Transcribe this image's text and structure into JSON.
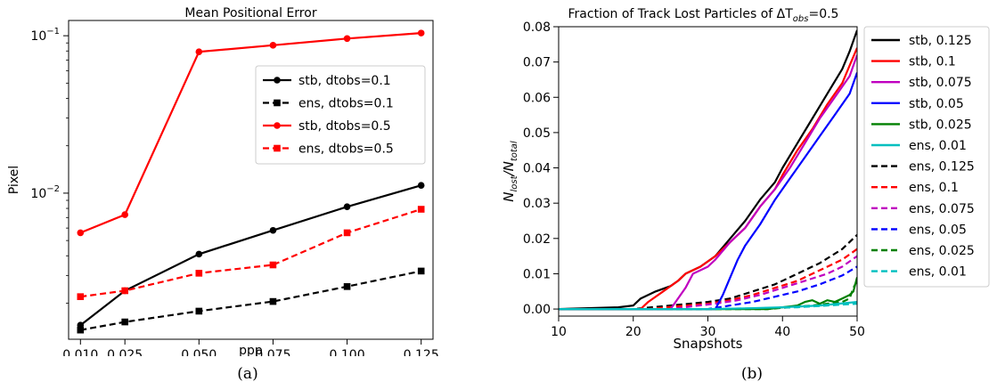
{
  "captions": [
    "(a)",
    "(b)"
  ],
  "chart_data": [
    {
      "type": "line",
      "title": "Mean Positional Error",
      "xlabel": "ppp",
      "ylabel": "Pixel",
      "yscale": "log",
      "xlim": [
        0.006,
        0.129
      ],
      "ylim": [
        0.00118,
        0.125
      ],
      "x": [
        0.01,
        0.025,
        0.05,
        0.075,
        0.1,
        0.125
      ],
      "xticks": [
        "0.010",
        "0.025",
        "0.050",
        "0.075",
        "0.100",
        "0.125"
      ],
      "yticks": [
        {
          "base": "10",
          "exp": "−1",
          "value": 0.1
        },
        {
          "base": "10",
          "exp": "−2",
          "value": 0.01
        }
      ],
      "legend_position": "right",
      "grid": false,
      "series": [
        {
          "name": "stb, dtobs=0.1",
          "color": "#000000",
          "dash": "solid",
          "marker": "circle",
          "values": [
            0.00145,
            0.0024,
            0.0041,
            0.0058,
            0.0082,
            0.0112
          ]
        },
        {
          "name": "ens, dtobs=0.1",
          "color": "#000000",
          "dash": "dashed",
          "marker": "square",
          "values": [
            0.00135,
            0.00152,
            0.00178,
            0.00205,
            0.00255,
            0.0032
          ]
        },
        {
          "name": "stb, dtobs=0.5",
          "color": "#ff0000",
          "dash": "solid",
          "marker": "circle",
          "values": [
            0.0056,
            0.0073,
            0.079,
            0.087,
            0.096,
            0.104
          ]
        },
        {
          "name": "ens, dtobs=0.5",
          "color": "#ff0000",
          "dash": "dashed",
          "marker": "square",
          "values": [
            0.0022,
            0.0024,
            0.0031,
            0.0035,
            0.0056,
            0.0079
          ]
        }
      ]
    },
    {
      "type": "line",
      "title": "Fraction of Track Lost Particles of ΔT",
      "title_sub": "obs",
      "title_suffix": "=0.5",
      "xlabel": "Snapshots",
      "ylabel_main": "N",
      "ylabel_sub1": "lost",
      "ylabel_mid": "/N",
      "ylabel_sub2": "total",
      "xlim": [
        10,
        50
      ],
      "ylim": [
        -0.002,
        0.08
      ],
      "xticks": [
        10,
        20,
        30,
        40,
        50
      ],
      "yticks": [
        "0.00",
        "0.01",
        "0.02",
        "0.03",
        "0.04",
        "0.05",
        "0.06",
        "0.07",
        "0.08"
      ],
      "legend_position": "outside-right",
      "grid": false,
      "series": [
        {
          "name": "stb, 0.125",
          "color": "#000000",
          "dash": "solid",
          "points": [
            [
              10,
              0
            ],
            [
              18,
              0.0005
            ],
            [
              20,
              0.001
            ],
            [
              21,
              0.003
            ],
            [
              23,
              0.005
            ],
            [
              25,
              0.0065
            ],
            [
              26,
              0.008
            ],
            [
              27,
              0.01
            ],
            [
              29,
              0.012
            ],
            [
              31,
              0.015
            ],
            [
              33,
              0.02
            ],
            [
              35,
              0.025
            ],
            [
              37,
              0.031
            ],
            [
              39,
              0.036
            ],
            [
              40,
              0.04
            ],
            [
              42,
              0.047
            ],
            [
              44,
              0.054
            ],
            [
              46,
              0.061
            ],
            [
              48,
              0.068
            ],
            [
              49,
              0.073
            ],
            [
              50,
              0.079
            ]
          ]
        },
        {
          "name": "stb, 0.1",
          "color": "#ff0000",
          "dash": "solid",
          "points": [
            [
              10,
              0
            ],
            [
              21,
              0
            ],
            [
              22,
              0.002
            ],
            [
              24,
              0.005
            ],
            [
              26,
              0.008
            ],
            [
              27,
              0.01
            ],
            [
              29,
              0.012
            ],
            [
              31,
              0.015
            ],
            [
              33,
              0.019
            ],
            [
              35,
              0.023
            ],
            [
              37,
              0.029
            ],
            [
              39,
              0.034
            ],
            [
              40,
              0.038
            ],
            [
              42,
              0.045
            ],
            [
              44,
              0.051
            ],
            [
              46,
              0.058
            ],
            [
              48,
              0.064
            ],
            [
              49,
              0.069
            ],
            [
              50,
              0.074
            ]
          ]
        },
        {
          "name": "stb, 0.075",
          "color": "#c000c0",
          "dash": "solid",
          "points": [
            [
              10,
              0
            ],
            [
              25,
              0
            ],
            [
              26,
              0.003
            ],
            [
              27,
              0.006
            ],
            [
              28,
              0.01
            ],
            [
              29,
              0.011
            ],
            [
              30,
              0.012
            ],
            [
              31,
              0.014
            ],
            [
              33,
              0.019
            ],
            [
              35,
              0.023
            ],
            [
              37,
              0.029
            ],
            [
              39,
              0.034
            ],
            [
              41,
              0.04
            ],
            [
              43,
              0.047
            ],
            [
              45,
              0.054
            ],
            [
              47,
              0.06
            ],
            [
              49,
              0.066
            ],
            [
              50,
              0.072
            ]
          ]
        },
        {
          "name": "stb, 0.05",
          "color": "#0000ff",
          "dash": "solid",
          "points": [
            [
              10,
              0
            ],
            [
              31,
              0
            ],
            [
              32,
              0.004
            ],
            [
              33,
              0.009
            ],
            [
              34,
              0.014
            ],
            [
              35,
              0.018
            ],
            [
              36,
              0.021
            ],
            [
              37,
              0.024
            ],
            [
              39,
              0.031
            ],
            [
              41,
              0.037
            ],
            [
              43,
              0.043
            ],
            [
              45,
              0.049
            ],
            [
              47,
              0.055
            ],
            [
              49,
              0.061
            ],
            [
              50,
              0.067
            ]
          ]
        },
        {
          "name": "stb, 0.025",
          "color": "#008000",
          "dash": "solid",
          "points": [
            [
              10,
              0
            ],
            [
              38,
              0
            ],
            [
              40,
              0.0005
            ],
            [
              42,
              0.001
            ],
            [
              43,
              0.002
            ],
            [
              44,
              0.0025
            ],
            [
              45,
              0.0015
            ],
            [
              46,
              0.0025
            ],
            [
              47,
              0.002
            ],
            [
              48,
              0.003
            ],
            [
              49,
              0.004
            ],
            [
              49.5,
              0.005
            ],
            [
              50,
              0.009
            ]
          ]
        },
        {
          "name": "ens, 0.01",
          "color": "#00bfbf",
          "dash": "solid",
          "points": [
            [
              10,
              0
            ],
            [
              30,
              0
            ],
            [
              35,
              0.0002
            ],
            [
              40,
              0.0005
            ],
            [
              45,
              0.001
            ],
            [
              50,
              0.002
            ]
          ]
        },
        {
          "name": "ens, 0.125",
          "color": "#000000",
          "dash": "dashed",
          "points": [
            [
              10,
              0
            ],
            [
              20,
              0
            ],
            [
              25,
              0.001
            ],
            [
              30,
              0.002
            ],
            [
              33,
              0.003
            ],
            [
              36,
              0.005
            ],
            [
              39,
              0.007
            ],
            [
              42,
              0.01
            ],
            [
              45,
              0.013
            ],
            [
              48,
              0.017
            ],
            [
              50,
              0.021
            ]
          ]
        },
        {
          "name": "ens, 0.1",
          "color": "#ff0000",
          "dash": "dashed",
          "points": [
            [
              10,
              0
            ],
            [
              22,
              0
            ],
            [
              26,
              0.0008
            ],
            [
              30,
              0.0015
            ],
            [
              33,
              0.0025
            ],
            [
              36,
              0.004
            ],
            [
              39,
              0.006
            ],
            [
              42,
              0.008
            ],
            [
              45,
              0.011
            ],
            [
              48,
              0.014
            ],
            [
              50,
              0.017
            ]
          ]
        },
        {
          "name": "ens, 0.075",
          "color": "#c000c0",
          "dash": "dashed",
          "points": [
            [
              10,
              0
            ],
            [
              25,
              0
            ],
            [
              28,
              0.0008
            ],
            [
              31,
              0.0015
            ],
            [
              34,
              0.0025
            ],
            [
              37,
              0.004
            ],
            [
              40,
              0.006
            ],
            [
              43,
              0.008
            ],
            [
              46,
              0.01
            ],
            [
              48,
              0.012
            ],
            [
              50,
              0.015
            ]
          ]
        },
        {
          "name": "ens, 0.05",
          "color": "#0000ff",
          "dash": "dashed",
          "points": [
            [
              10,
              0
            ],
            [
              30,
              0
            ],
            [
              33,
              0.001
            ],
            [
              36,
              0.002
            ],
            [
              39,
              0.0035
            ],
            [
              42,
              0.005
            ],
            [
              45,
              0.007
            ],
            [
              48,
              0.0095
            ],
            [
              50,
              0.012
            ]
          ]
        },
        {
          "name": "ens, 0.025",
          "color": "#008000",
          "dash": "dashed",
          "points": [
            [
              10,
              0
            ],
            [
              38,
              0
            ],
            [
              41,
              0.0005
            ],
            [
              44,
              0.001
            ],
            [
              46,
              0.0015
            ],
            [
              48,
              0.002
            ],
            [
              49,
              0.003
            ],
            [
              49.5,
              0.006
            ],
            [
              50,
              0.008
            ]
          ]
        },
        {
          "name": "ens, 0.01",
          "color": "#00bfbf",
          "dash": "dashed",
          "points": [
            [
              10,
              0
            ],
            [
              30,
              0
            ],
            [
              36,
              0.0002
            ],
            [
              42,
              0.0005
            ],
            [
              46,
              0.001
            ],
            [
              50,
              0.0015
            ]
          ]
        }
      ]
    }
  ]
}
